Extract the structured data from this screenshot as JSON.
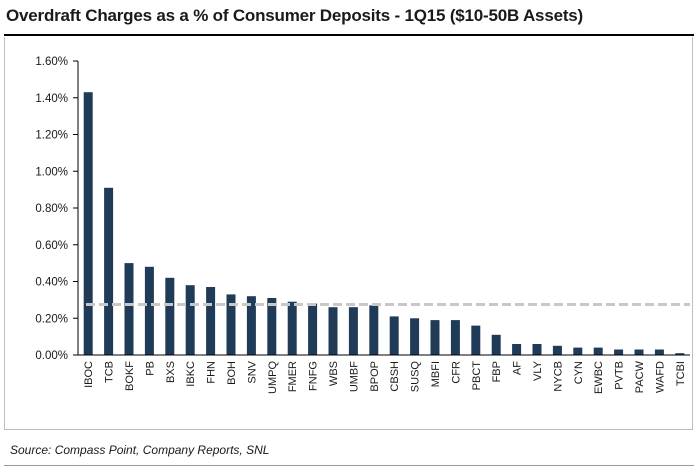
{
  "title": "Overdraft Charges as a % of Consumer Deposits - 1Q15 ($10-50B Assets)",
  "source": "Source: Compass Point, Company Reports, SNL",
  "colors": {
    "bar": "#1f3b57",
    "average_line": "#c8c8c8",
    "axis": "#000000",
    "text": "#1a1a1a"
  },
  "chart_data": {
    "type": "bar",
    "title": "Overdraft Charges as a % of Consumer Deposits - 1Q15 ($10-50B Assets)",
    "xlabel": "",
    "ylabel": "",
    "ylim": [
      0,
      1.6
    ],
    "yticks": [
      "0.00%",
      "0.20%",
      "0.40%",
      "0.60%",
      "0.80%",
      "1.00%",
      "1.20%",
      "1.40%",
      "1.60%"
    ],
    "grid": false,
    "legend": "none",
    "categories": [
      "IBOC",
      "TCB",
      "BOKF",
      "PB",
      "BXS",
      "IBKC",
      "FHN",
      "BOH",
      "SNV",
      "UMPQ",
      "FMER",
      "FNFG",
      "WBS",
      "UMBF",
      "BPOP",
      "CBSH",
      "SUSQ",
      "MBFI",
      "CFR",
      "PBCT",
      "FBP",
      "AF",
      "VLY",
      "NYCB",
      "CYN",
      "EWBC",
      "PVTB",
      "PACW",
      "WAFD",
      "TCBI"
    ],
    "values": [
      1.43,
      0.91,
      0.5,
      0.48,
      0.42,
      0.38,
      0.37,
      0.33,
      0.32,
      0.31,
      0.29,
      0.28,
      0.26,
      0.26,
      0.27,
      0.21,
      0.2,
      0.19,
      0.19,
      0.16,
      0.11,
      0.06,
      0.06,
      0.05,
      0.04,
      0.04,
      0.03,
      0.03,
      0.03,
      0.01
    ],
    "value_unit": "%",
    "average_line": 0.275
  }
}
